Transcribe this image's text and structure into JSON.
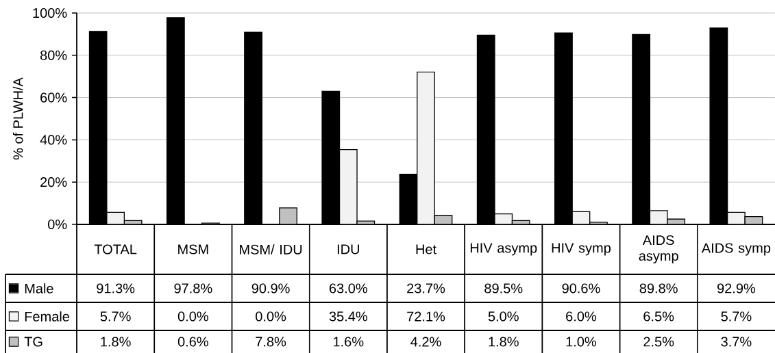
{
  "chart_data": {
    "type": "bar",
    "ylabel": "% of PLWH/A",
    "categories": [
      "TOTAL",
      "MSM",
      "MSM/ IDU",
      "IDU",
      "Het",
      "HIV asymp",
      "HIV symp",
      "AIDS asymp",
      "AIDS symp"
    ],
    "series": [
      {
        "name": "Male",
        "color": "#000000",
        "values": [
          91.3,
          97.8,
          90.9,
          63.0,
          23.7,
          89.5,
          90.6,
          89.8,
          92.9
        ],
        "value_labels": [
          "91.3%",
          "97.8%",
          "90.9%",
          "63.0%",
          "23.7%",
          "89.5%",
          "90.6%",
          "89.8%",
          "92.9%"
        ]
      },
      {
        "name": "Female",
        "color": "#f2f2f2",
        "values": [
          5.7,
          0.0,
          0.0,
          35.4,
          72.1,
          5.0,
          6.0,
          6.5,
          5.7
        ],
        "value_labels": [
          "5.7%",
          "0.0%",
          "0.0%",
          "35.4%",
          "72.1%",
          "5.0%",
          "6.0%",
          "6.5%",
          "5.7%"
        ]
      },
      {
        "name": "TG",
        "color": "#c0c0c0",
        "values": [
          1.8,
          0.6,
          7.8,
          1.6,
          4.2,
          1.8,
          1.0,
          2.5,
          3.7
        ],
        "value_labels": [
          "1.8%",
          "0.6%",
          "7.8%",
          "1.6%",
          "4.2%",
          "1.8%",
          "1.0%",
          "2.5%",
          "3.7%"
        ]
      }
    ],
    "ylim": [
      0,
      100
    ],
    "yticks": [
      {
        "value": 0,
        "label": "0%"
      },
      {
        "value": 20,
        "label": "20%"
      },
      {
        "value": 40,
        "label": "40%"
      },
      {
        "value": 60,
        "label": "60%"
      },
      {
        "value": 80,
        "label": "80%"
      },
      {
        "value": 100,
        "label": "100%"
      }
    ],
    "grid": "y",
    "legend": "bottom left"
  }
}
